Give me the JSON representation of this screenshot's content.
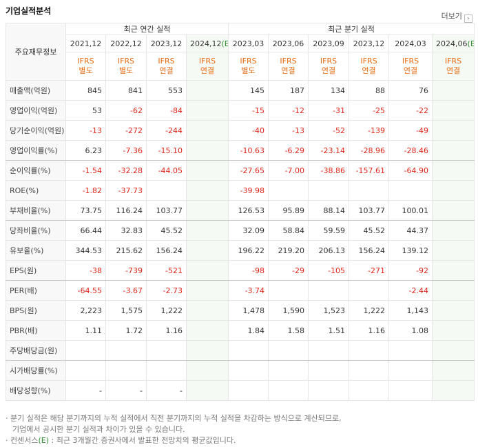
{
  "header": {
    "title": "기업실적분석",
    "more": "더보기"
  },
  "table": {
    "corner": "주요재무정보",
    "groups": [
      {
        "label": "최근 연간 실적",
        "span": 4
      },
      {
        "label": "최근 분기 실적",
        "span": 6
      }
    ],
    "periods": [
      {
        "date": "2021,12"
      },
      {
        "date": "2022,12"
      },
      {
        "date": "2023,12"
      },
      {
        "date": "2024,12",
        "mark": "(E)"
      },
      {
        "date": "2023,03"
      },
      {
        "date": "2023,06"
      },
      {
        "date": "2023,09"
      },
      {
        "date": "2023,12"
      },
      {
        "date": "2024,03"
      },
      {
        "date": "2024,06",
        "mark": "(E)"
      }
    ],
    "standards": [
      {
        "standard": "IFRS",
        "basis": "별도"
      },
      {
        "standard": "IFRS",
        "basis": "별도"
      },
      {
        "standard": "IFRS",
        "basis": "연결"
      },
      {
        "standard": "IFRS",
        "basis": "연결"
      },
      {
        "standard": "IFRS",
        "basis": "별도"
      },
      {
        "standard": "IFRS",
        "basis": "연결"
      },
      {
        "standard": "IFRS",
        "basis": "연결"
      },
      {
        "standard": "IFRS",
        "basis": "연결"
      },
      {
        "standard": "IFRS",
        "basis": "연결"
      },
      {
        "standard": "IFRS",
        "basis": "연결"
      }
    ],
    "rows": [
      {
        "label": "매출액(억원)",
        "cells": [
          "845",
          "841",
          "553",
          null,
          "145",
          "187",
          "134",
          "88",
          "76",
          null
        ]
      },
      {
        "label": "영업이익(억원)",
        "cells": [
          "53",
          "-62",
          "-84",
          null,
          "-15",
          "-12",
          "-31",
          "-25",
          "-22",
          null
        ]
      },
      {
        "label": "당기순이익(억원)",
        "cells": [
          "-13",
          "-272",
          "-244",
          null,
          "-40",
          "-13",
          "-52",
          "-139",
          "-49",
          null
        ]
      },
      {
        "label": "영업이익률(%)",
        "cells": [
          "6.23",
          "-7.36",
          "-15.10",
          null,
          "-10.63",
          "-6.29",
          "-23.14",
          "-28.96",
          "-28.46",
          null
        ]
      },
      {
        "label": "순이익률(%)",
        "cells": [
          "-1.54",
          "-32.28",
          "-44.05",
          null,
          "-27.65",
          "-7.00",
          "-38.86",
          "-157.61",
          "-64.90",
          null
        ]
      },
      {
        "label": "ROE(%)",
        "cells": [
          "-1.82",
          "-37.73",
          null,
          null,
          "-39.98",
          null,
          null,
          null,
          null,
          null
        ]
      },
      {
        "label": "부채비율(%)",
        "cells": [
          "73.75",
          "116.24",
          "103.77",
          null,
          "126.53",
          "95.89",
          "88.14",
          "103.77",
          "100.01",
          null
        ]
      },
      {
        "label": "당좌비율(%)",
        "cells": [
          "66.44",
          "32.83",
          "45.52",
          null,
          "32.09",
          "58.84",
          "59.59",
          "45.52",
          "44.37",
          null
        ]
      },
      {
        "label": "유보율(%)",
        "cells": [
          "344.53",
          "215.62",
          "156.24",
          null,
          "196.22",
          "219.20",
          "206.13",
          "156.24",
          "139.12",
          null
        ]
      },
      {
        "label": "EPS(원)",
        "cells": [
          "-38",
          "-739",
          "-521",
          null,
          "-98",
          "-29",
          "-105",
          "-271",
          "-92",
          null
        ]
      },
      {
        "label": "PER(배)",
        "cells": [
          "-64.55",
          "-3.67",
          "-2.73",
          null,
          "-3.74",
          null,
          null,
          null,
          "-2.44",
          null
        ]
      },
      {
        "label": "BPS(원)",
        "cells": [
          "2,223",
          "1,575",
          "1,222",
          null,
          "1,478",
          "1,590",
          "1,523",
          "1,222",
          "1,143",
          null
        ]
      },
      {
        "label": "PBR(배)",
        "cells": [
          "1.11",
          "1.72",
          "1.16",
          null,
          "1.84",
          "1.58",
          "1.51",
          "1.16",
          "1.08",
          null
        ]
      },
      {
        "label": "주당배당금(원)",
        "cells": [
          null,
          null,
          null,
          null,
          null,
          null,
          null,
          null,
          null,
          null
        ]
      },
      {
        "label": "시가배당률(%)",
        "cells": [
          null,
          null,
          null,
          null,
          null,
          null,
          null,
          null,
          null,
          null
        ]
      },
      {
        "label": "배당성향(%)",
        "cells": [
          "-",
          "-",
          "-",
          null,
          null,
          null,
          null,
          null,
          null,
          null
        ]
      }
    ],
    "row_groups": [
      3,
      6,
      9,
      13
    ]
  },
  "notes": [
    {
      "bullet": "·",
      "text": "분기 실적은 해당 분기까지의 누적 실적에서 직전 분기까지의 누적 실적을 차감하는 방식으로 계산되므로,",
      "continuation": "기업에서 공시한 분기 실적과 차이가 있을 수 있습니다."
    },
    {
      "bullet": "·",
      "prefix": "컨센서스",
      "mark": "(E)",
      "text": " : 최근 3개월간 증권사에서 발표한 전망치의 평균값입니다."
    }
  ]
}
